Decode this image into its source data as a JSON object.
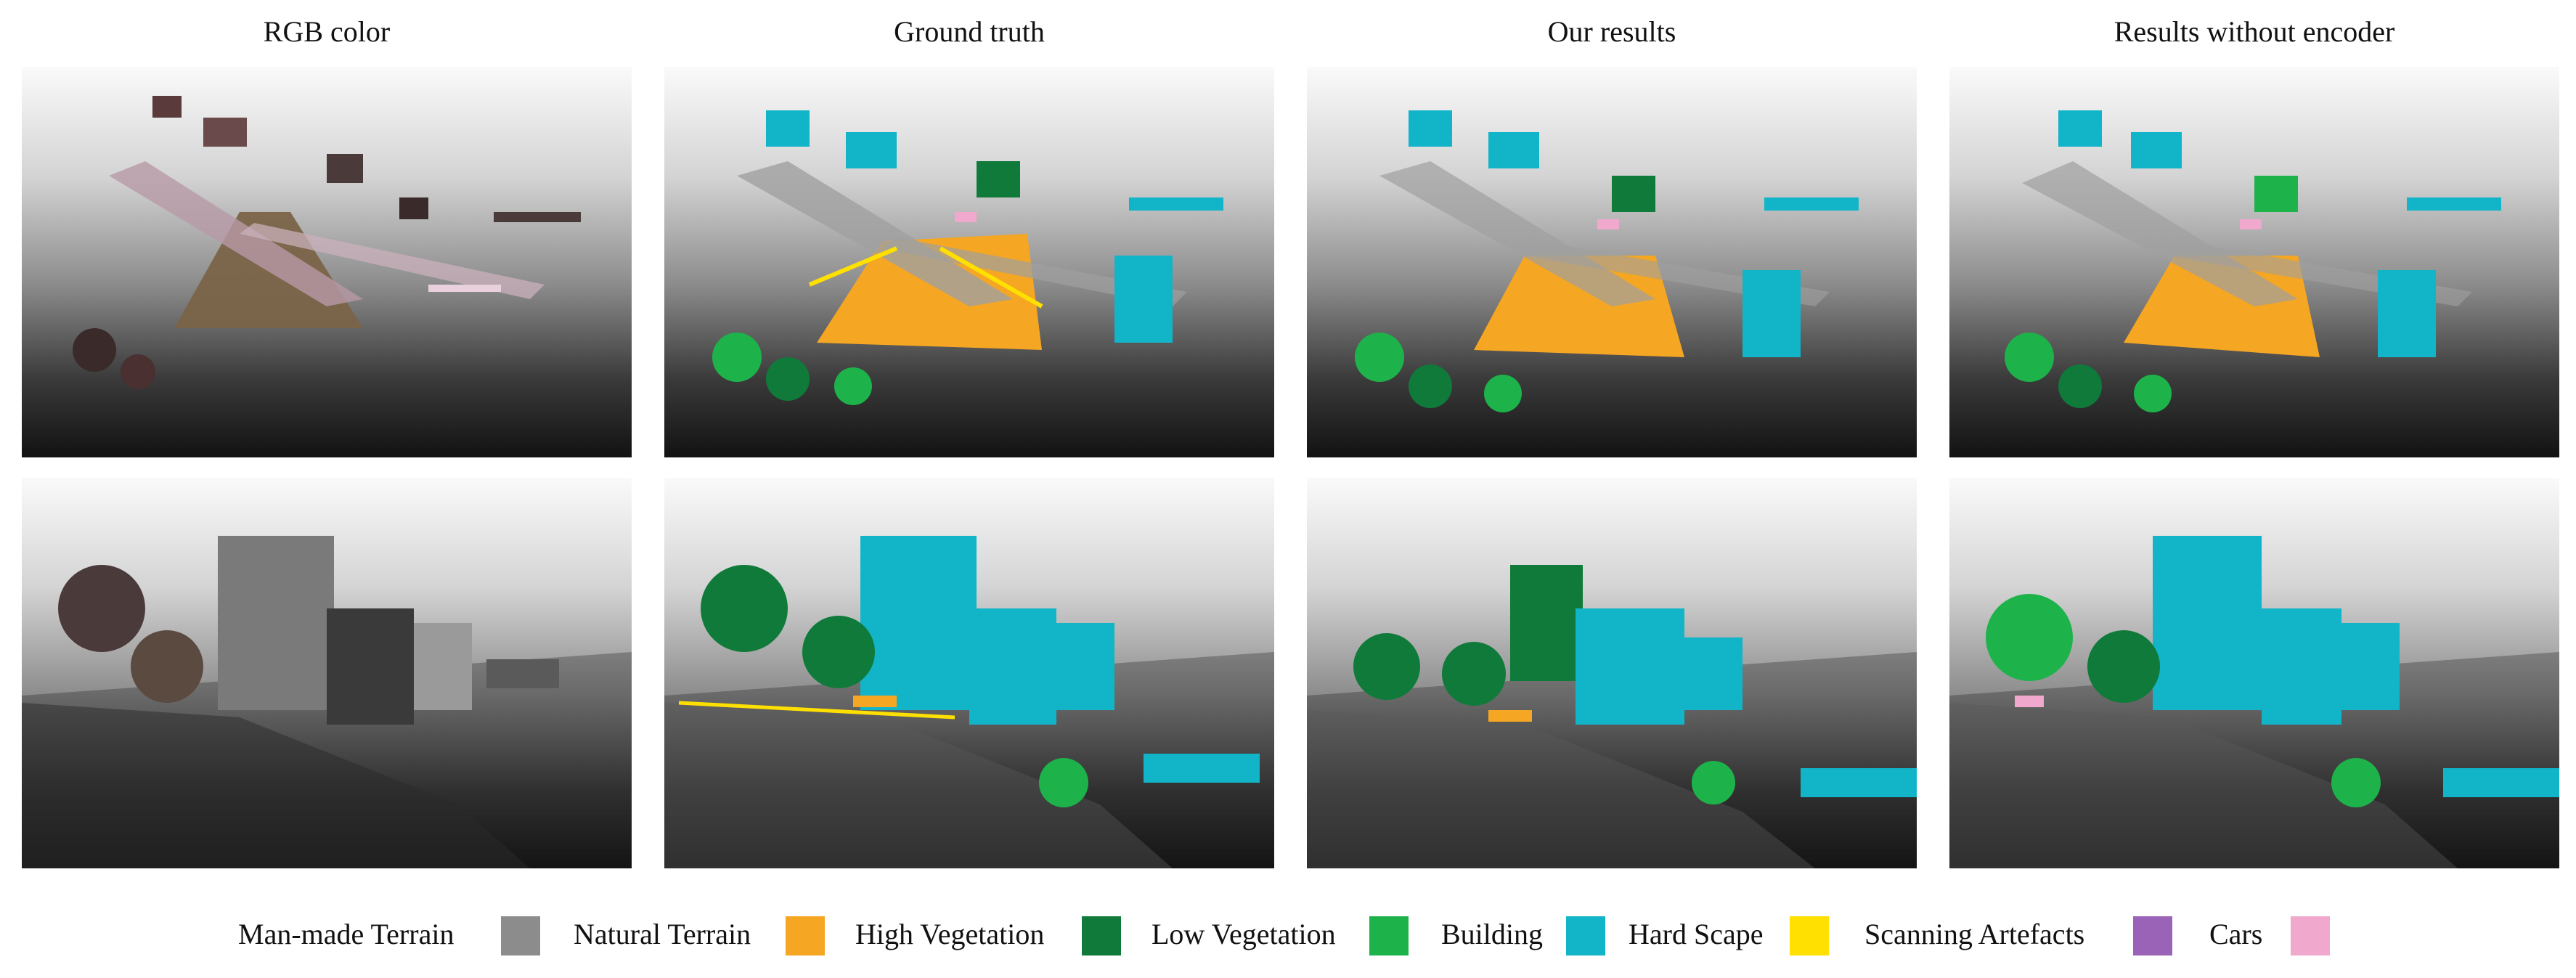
{
  "columns": [
    {
      "title": "RGB color"
    },
    {
      "title": "Ground truth"
    },
    {
      "title": "Our results"
    },
    {
      "title": "Results without encoder"
    }
  ],
  "legend": [
    {
      "label": "Man-made Terrain",
      "color": "#8c8c8c"
    },
    {
      "label": "Natural Terrain",
      "color": "#f5a623"
    },
    {
      "label": "High Vegetation",
      "color": "#0f7a3a"
    },
    {
      "label": "Low Vegetation",
      "color": "#1db34a"
    },
    {
      "label": "Building",
      "color": "#12b5c8"
    },
    {
      "label": "Hard Scape",
      "color": "#ffe000"
    },
    {
      "label": "Scanning Artefacts",
      "color": "#9a63b8"
    },
    {
      "label": "Cars",
      "color": "#f0a8cc"
    }
  ]
}
